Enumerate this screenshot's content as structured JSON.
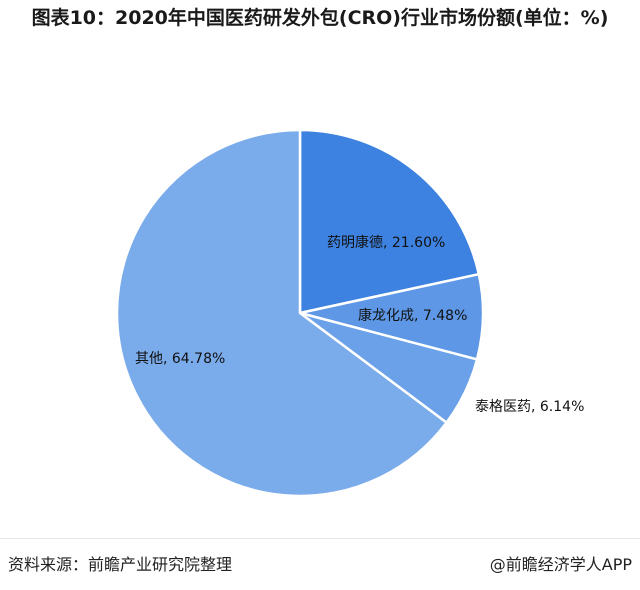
{
  "chart_data": {
    "type": "pie",
    "title": "图表10：2020年中国医药研发外包(CRO)行业市场份额(单位：%)",
    "start_angle_deg": 0,
    "direction": "clockwise",
    "slices": [
      {
        "label": "药明康德",
        "value": 21.6,
        "display": "21.60%",
        "color": "#3d82e0"
      },
      {
        "label": "康龙化成",
        "value": 7.48,
        "display": "7.48%",
        "color": "#5d97e6"
      },
      {
        "label": "泰格医药",
        "value": 6.14,
        "display": "6.14%",
        "color": "#6aa1e8"
      },
      {
        "label": "其他",
        "value": 64.78,
        "display": "64.78%",
        "color": "#7aabea"
      }
    ]
  },
  "footer": {
    "source": "资料来源：前瞻产业研究院整理",
    "credit": "@前瞻经济学人APP"
  }
}
